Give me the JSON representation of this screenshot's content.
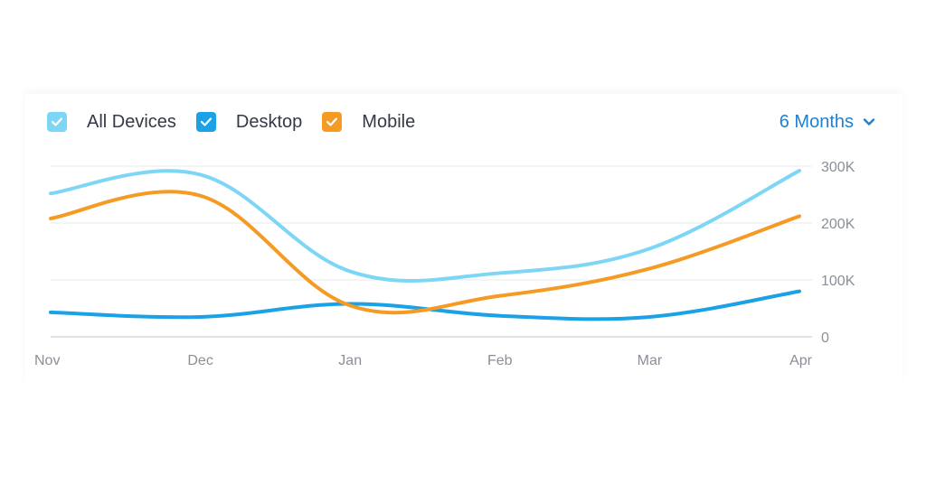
{
  "legend": {
    "items": [
      {
        "label": "All Devices",
        "color": "#7dd6f6"
      },
      {
        "label": "Desktop",
        "color": "#1aa1e6"
      },
      {
        "label": "Mobile",
        "color": "#f59a23"
      }
    ]
  },
  "range": {
    "label": "6 Months",
    "color": "#1f7fd1"
  },
  "chart_data": {
    "type": "line",
    "x": [
      "Nov",
      "Dec",
      "Jan",
      "Feb",
      "Mar",
      "Apr"
    ],
    "ylim": [
      0,
      300000
    ],
    "y_ticks": [
      {
        "value": 0,
        "label": "0"
      },
      {
        "value": 100000,
        "label": "100K"
      },
      {
        "value": 200000,
        "label": "200K"
      },
      {
        "value": 300000,
        "label": "300K"
      }
    ],
    "y_axis_side": "right",
    "grid": true,
    "legend_position": "top-left",
    "series": [
      {
        "name": "All Devices",
        "color": "#7dd6f6",
        "values": [
          252000,
          285000,
          115000,
          112000,
          155000,
          292000
        ]
      },
      {
        "name": "Desktop",
        "color": "#1aa1e6",
        "values": [
          43000,
          35000,
          58000,
          37000,
          35000,
          80000
        ]
      },
      {
        "name": "Mobile",
        "color": "#f59a23",
        "values": [
          208000,
          248000,
          55000,
          72000,
          120000,
          212000
        ]
      }
    ]
  }
}
